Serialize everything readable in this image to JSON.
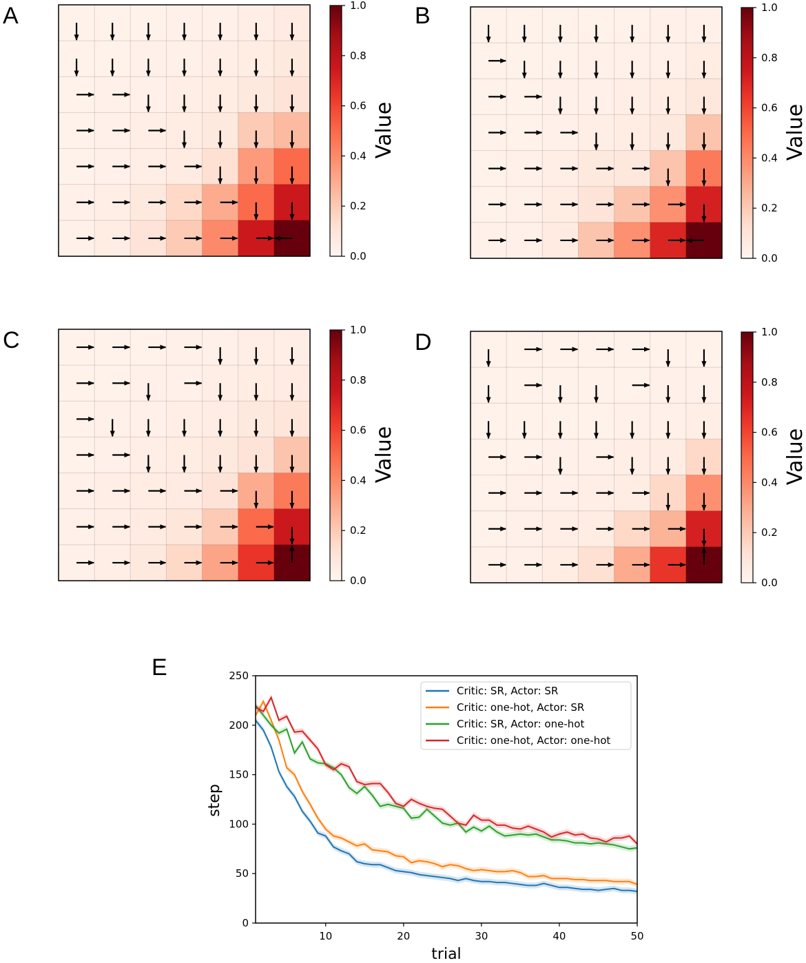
{
  "chart_data": [
    {
      "type": "heatmap",
      "panel": "A",
      "colormap": "Reds",
      "colorbar_label": "Value",
      "clim": [
        0,
        1
      ],
      "colorbar_ticks": [
        "0.0",
        "0.2",
        "0.4",
        "0.6",
        "0.8",
        "1.0"
      ],
      "values": [
        [
          0.02,
          0.02,
          0.02,
          0.03,
          0.03,
          0.04,
          0.06
        ],
        [
          0.02,
          0.02,
          0.03,
          0.03,
          0.04,
          0.05,
          0.07
        ],
        [
          0.02,
          0.03,
          0.03,
          0.04,
          0.05,
          0.07,
          0.1
        ],
        [
          0.02,
          0.03,
          0.04,
          0.05,
          0.07,
          0.2,
          0.25
        ],
        [
          0.02,
          0.03,
          0.04,
          0.06,
          0.12,
          0.35,
          0.5
        ],
        [
          0.03,
          0.04,
          0.07,
          0.15,
          0.3,
          0.5,
          0.75
        ],
        [
          0.03,
          0.05,
          0.1,
          0.2,
          0.4,
          0.75,
          1.0
        ]
      ],
      "arrows": [
        "DDDDDDD",
        "DDDDDDD",
        "RRDDDDD",
        "RRRDDDD",
        "RRRRDDD",
        "RRRRRDD",
        "RRRRRRL"
      ]
    },
    {
      "type": "heatmap",
      "panel": "B",
      "colormap": "Reds",
      "colorbar_label": "Value",
      "clim": [
        0,
        1
      ],
      "colorbar_ticks": [
        "0.0",
        "0.2",
        "0.4",
        "0.6",
        "0.8",
        "1.0"
      ],
      "values": [
        [
          0.02,
          0.02,
          0.02,
          0.02,
          0.02,
          0.03,
          0.03
        ],
        [
          0.02,
          0.02,
          0.02,
          0.03,
          0.03,
          0.03,
          0.05
        ],
        [
          0.02,
          0.02,
          0.03,
          0.03,
          0.04,
          0.05,
          0.08
        ],
        [
          0.02,
          0.02,
          0.03,
          0.04,
          0.05,
          0.07,
          0.22
        ],
        [
          0.02,
          0.03,
          0.04,
          0.07,
          0.08,
          0.22,
          0.45
        ],
        [
          0.02,
          0.03,
          0.05,
          0.1,
          0.22,
          0.38,
          0.72
        ],
        [
          0.03,
          0.03,
          0.06,
          0.22,
          0.38,
          0.7,
          1.0
        ]
      ],
      "arrows": [
        "DDDDDDD",
        "RDDDDDD",
        "RRDDDDD",
        "RRRDDDD",
        "RRRRRDD",
        "RRRRRRD",
        "RRRRRRL"
      ]
    },
    {
      "type": "heatmap",
      "panel": "C",
      "colormap": "Reds",
      "colorbar_label": "Value",
      "clim": [
        0,
        1
      ],
      "colorbar_ticks": [
        "0.0",
        "0.2",
        "0.4",
        "0.6",
        "0.8",
        "1.0"
      ],
      "values": [
        [
          0.02,
          0.02,
          0.02,
          0.03,
          0.03,
          0.04,
          0.04
        ],
        [
          0.02,
          0.02,
          0.03,
          0.03,
          0.04,
          0.05,
          0.06
        ],
        [
          0.02,
          0.03,
          0.03,
          0.04,
          0.05,
          0.07,
          0.09
        ],
        [
          0.02,
          0.03,
          0.04,
          0.05,
          0.07,
          0.1,
          0.22
        ],
        [
          0.03,
          0.04,
          0.05,
          0.06,
          0.1,
          0.3,
          0.45
        ],
        [
          0.03,
          0.04,
          0.06,
          0.09,
          0.2,
          0.5,
          0.75
        ],
        [
          0.03,
          0.04,
          0.07,
          0.15,
          0.32,
          0.65,
          1.0
        ]
      ],
      "arrows": [
        "RRRRDDD",
        "RRDRDDD",
        "RDDDDDD",
        "RRDDDDD",
        "RRRRRDD",
        "RRRRRRD",
        "RRRRRRU"
      ]
    },
    {
      "type": "heatmap",
      "panel": "D",
      "colormap": "Reds",
      "colorbar_label": "Value",
      "clim": [
        0,
        1
      ],
      "colorbar_ticks": [
        "0.0",
        "0.2",
        "0.4",
        "0.6",
        "0.8",
        "1.0"
      ],
      "values": [
        [
          0.02,
          0.02,
          0.02,
          0.02,
          0.02,
          0.02,
          0.02
        ],
        [
          0.02,
          0.02,
          0.02,
          0.02,
          0.02,
          0.03,
          0.03
        ],
        [
          0.02,
          0.02,
          0.02,
          0.02,
          0.03,
          0.03,
          0.04
        ],
        [
          0.02,
          0.02,
          0.03,
          0.03,
          0.04,
          0.05,
          0.15
        ],
        [
          0.02,
          0.03,
          0.03,
          0.04,
          0.05,
          0.15,
          0.38
        ],
        [
          0.02,
          0.03,
          0.04,
          0.05,
          0.15,
          0.27,
          0.72
        ],
        [
          0.03,
          0.03,
          0.05,
          0.12,
          0.3,
          0.65,
          1.0
        ]
      ],
      "arrows": [
        "DRRRRDD",
        "DRDDRDD",
        "DDDDDDD",
        "RRDRDDD",
        "RRRRRDD",
        "RRRRRRD",
        "RRRRRRU"
      ]
    },
    {
      "type": "line",
      "panel": "E",
      "xlabel": "trial",
      "ylabel": "step",
      "xlim": [
        1,
        50
      ],
      "ylim": [
        0,
        250
      ],
      "xticks": [
        10,
        20,
        30,
        40,
        50
      ],
      "yticks": [
        0,
        50,
        100,
        150,
        200,
        250
      ],
      "legend_position": "top-right",
      "grid": false,
      "series": [
        {
          "name": "Critic: SR, Actor: SR",
          "color": "#1f77b4",
          "values": [
            205,
            195,
            178,
            153,
            138,
            128,
            113,
            103,
            91,
            88,
            77,
            73,
            70,
            62,
            60,
            59,
            59,
            56,
            53,
            52,
            51,
            49,
            48,
            47,
            46,
            45,
            43,
            45,
            43,
            42,
            42,
            41,
            41,
            40,
            39,
            38,
            38,
            40,
            38,
            36,
            36,
            35,
            34,
            34,
            33,
            34,
            35,
            33,
            33,
            32
          ]
        },
        {
          "name": "Critic: one-hot, Actor: SR",
          "color": "#ff7f0e",
          "values": [
            210,
            224,
            205,
            185,
            157,
            150,
            133,
            120,
            106,
            95,
            88,
            86,
            82,
            78,
            80,
            74,
            73,
            72,
            68,
            67,
            61,
            63,
            62,
            60,
            57,
            59,
            58,
            55,
            53,
            54,
            53,
            52,
            52,
            53,
            51,
            47,
            47,
            48,
            45,
            45,
            45,
            44,
            44,
            43,
            43,
            43,
            42,
            42,
            42,
            39
          ]
        },
        {
          "name": "Critic: SR, Actor: one-hot",
          "color": "#2ca02c",
          "values": [
            220,
            210,
            200,
            192,
            196,
            172,
            183,
            166,
            162,
            161,
            157,
            150,
            137,
            131,
            138,
            129,
            118,
            120,
            118,
            116,
            106,
            107,
            115,
            108,
            101,
            99,
            101,
            92,
            97,
            93,
            98,
            92,
            88,
            89,
            90,
            89,
            90,
            87,
            84,
            84,
            83,
            81,
            81,
            80,
            81,
            80,
            79,
            77,
            75,
            76
          ]
        },
        {
          "name": "Critic: one-hot, Actor: one-hot",
          "color": "#d62728",
          "values": [
            218,
            214,
            228,
            205,
            209,
            193,
            194,
            185,
            176,
            160,
            155,
            161,
            158,
            143,
            140,
            141,
            141,
            132,
            121,
            118,
            125,
            121,
            118,
            116,
            115,
            108,
            101,
            99,
            109,
            104,
            104,
            99,
            99,
            96,
            95,
            98,
            95,
            92,
            87,
            90,
            92,
            89,
            90,
            86,
            85,
            82,
            86,
            86,
            88,
            80
          ]
        }
      ]
    }
  ]
}
